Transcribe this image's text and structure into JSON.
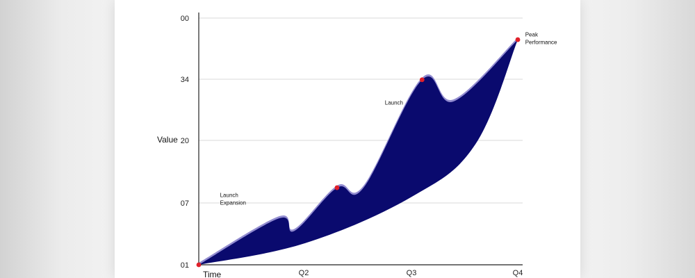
{
  "chart_data": {
    "type": "area",
    "title": "",
    "xlabel": "Time",
    "ylabel": "Value",
    "x_ticks": [
      "Q2",
      "Q3",
      "Q4"
    ],
    "y_ticks": [
      "01",
      "07",
      "20",
      "34",
      "00"
    ],
    "grid": true,
    "x_range": [
      0,
      4
    ],
    "y_range": [
      0,
      40
    ],
    "upper_series": [
      {
        "x": 0.0,
        "y": 0.0
      },
      {
        "x": 0.75,
        "y": 7.5
      },
      {
        "x": 0.9,
        "y": 5.5
      },
      {
        "x": 1.3,
        "y": 12.5
      },
      {
        "x": 1.55,
        "y": 12.5
      },
      {
        "x": 2.1,
        "y": 30.0
      },
      {
        "x": 2.4,
        "y": 26.5
      },
      {
        "x": 3.0,
        "y": 36.5
      }
    ],
    "lower_series": [
      {
        "x": 0.0,
        "y": 0.0
      },
      {
        "x": 1.0,
        "y": 3.5
      },
      {
        "x": 2.0,
        "y": 11.0
      },
      {
        "x": 2.6,
        "y": 19.5
      },
      {
        "x": 3.0,
        "y": 36.5
      }
    ],
    "markers": [
      {
        "x": 0.0,
        "y": 0.0
      },
      {
        "x": 1.3,
        "y": 12.5
      },
      {
        "x": 2.1,
        "y": 30.0
      },
      {
        "x": 3.0,
        "y": 36.5
      }
    ],
    "annotations": [
      {
        "lines": [
          "Launch",
          "Expansion"
        ],
        "x": 0.2,
        "y": 11.0
      },
      {
        "lines": [
          "Launch"
        ],
        "x": 1.75,
        "y": 26.0
      },
      {
        "lines": [
          "Peak",
          "Performance"
        ],
        "x": 3.07,
        "y": 37.0
      }
    ],
    "colors": {
      "area_fill": "#0a0a6e",
      "highlight_fill": "#7f78c8",
      "marker": "#e0202a",
      "axis": "#222222",
      "grid": "#d8d8d8"
    }
  }
}
